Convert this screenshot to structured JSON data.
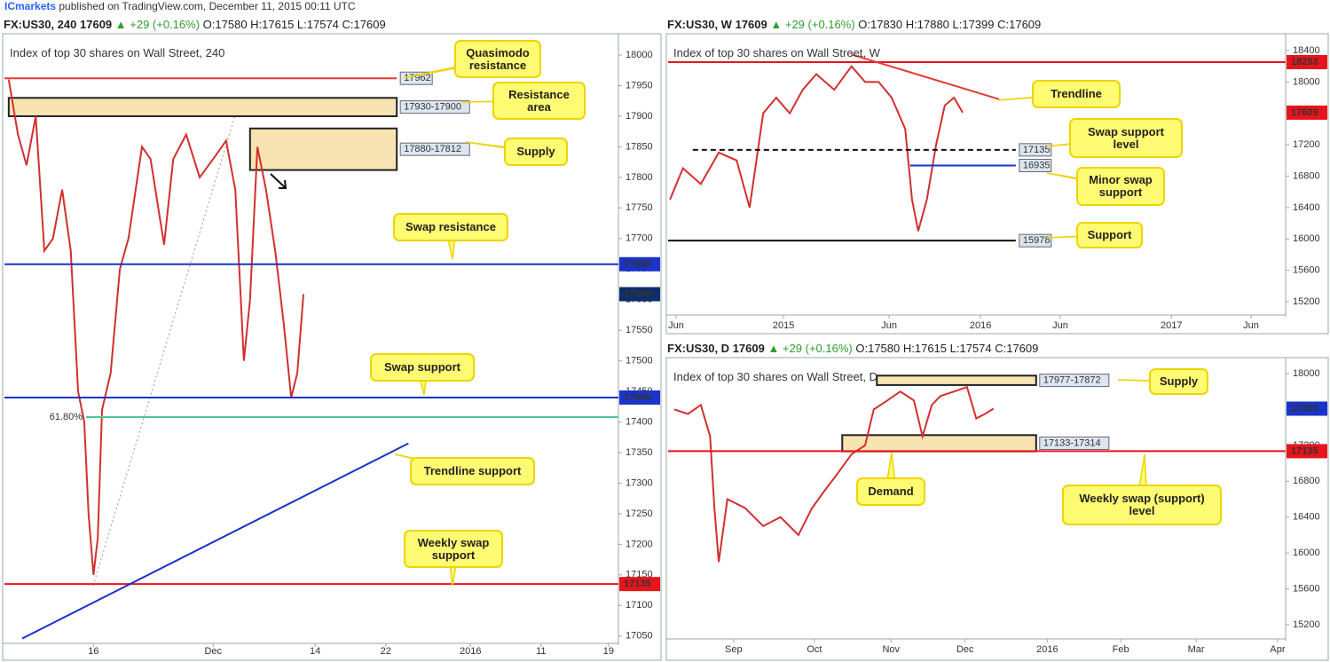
{
  "header": {
    "brand": "ICmarkets",
    "published": "published on TradingView.com, December 11, 2015 00:11 UTC"
  },
  "chart_data": [
    {
      "type": "line",
      "symbol": "FX:US30, 240",
      "last": 17609,
      "change": "▲ +29 (+0.16%)",
      "ohlc": "O:17580 H:17615 L:17574 C:17609",
      "title": "Index of top 30 shares on Wall Street, 240",
      "x": [
        0.7,
        2.2,
        3.6,
        5.1,
        6.5,
        7.9,
        9.4,
        10.8,
        12.0,
        13.0,
        13.7,
        14.5,
        15.2,
        15.9,
        17.3,
        18.8,
        20.2,
        22.4,
        23.8,
        26.0,
        27.5,
        29.6,
        31.8,
        34.0,
        36.1,
        37.6,
        39.0,
        40.0,
        41.2,
        42.6,
        44.1,
        45.5,
        46.7,
        47.7,
        48.7
      ],
      "values": [
        17960,
        17870,
        17820,
        17900,
        17680,
        17700,
        17780,
        17680,
        17450,
        17400,
        17250,
        17150,
        17210,
        17420,
        17480,
        17650,
        17700,
        17850,
        17830,
        17690,
        17830,
        17870,
        17800,
        17830,
        17860,
        17780,
        17500,
        17600,
        17850,
        17780,
        17680,
        17560,
        17440,
        17480,
        17609
      ],
      "color": "#d32f2f",
      "xlim": [
        0,
        100
      ],
      "ylim": [
        17038,
        18032
      ],
      "xticks": [
        {
          "value": 14.5,
          "label": "16"
        },
        {
          "value": 34.0,
          "label": "Dec"
        },
        {
          "value": 50.6,
          "label": "14"
        },
        {
          "value": 62.1,
          "label": "22"
        },
        {
          "value": 75.9,
          "label": "2016"
        },
        {
          "value": 87.4,
          "label": "11"
        },
        {
          "value": 98.4,
          "label": "19"
        }
      ],
      "yticks": [
        17050,
        17100,
        17150,
        17200,
        17250,
        17300,
        17350,
        17400,
        17450,
        17500,
        17550,
        17600,
        17650,
        17700,
        17750,
        17800,
        17850,
        17900,
        17950,
        18000
      ],
      "zones": [
        {
          "label": "17930-17900",
          "top": 17930,
          "bottom": 17900,
          "from": 0.7,
          "to": 63.9
        },
        {
          "label": "17880-17812",
          "top": 17880,
          "bottom": 17812,
          "from": 40.0,
          "to": 63.9
        }
      ],
      "levels": [
        {
          "value": 17962,
          "color": "#e53935",
          "from": 0,
          "to": 63.9,
          "tag": "inline"
        },
        {
          "value": 17658,
          "color": "#1a33c8",
          "tag": "axis"
        },
        {
          "value": 17440,
          "color": "#1a33c8",
          "tag": "axis"
        },
        {
          "value": 17135,
          "color": "#e8141b",
          "tag": "axis"
        },
        {
          "value": 17408,
          "color": "#4fc79a",
          "from": 13.3,
          "label": "61.80%"
        }
      ],
      "trendlines": [
        {
          "x": [
            2.9,
            65.8
          ],
          "y": [
            17046,
            17365
          ],
          "color": "#1a33c8"
        }
      ],
      "last_tag": {
        "value": 17609,
        "color": "#0f2d6b"
      },
      "callouts": [
        "Quasimodo resistance",
        "Resistance area",
        "Supply",
        "Swap resistance",
        "Swap support",
        "Trendline support",
        "Weekly swap support"
      ]
    },
    {
      "type": "line",
      "symbol": "FX:US30, W",
      "last": 17609,
      "change": "▲ +29 (+0.16%)",
      "ohlc": "O:17830 H:17880 L:17399 C:17609",
      "title": "Index of top 30 shares on Wall Street, W",
      "x": [
        0.3,
        2.4,
        5.3,
        8.2,
        11.1,
        13.2,
        15.4,
        17.5,
        19.7,
        21.8,
        24.0,
        26.9,
        29.7,
        31.9,
        34.1,
        36.2,
        38.4,
        39.5,
        40.5,
        41.9,
        43.4,
        44.8,
        46.3,
        47.7
      ],
      "values": [
        16500,
        16900,
        16700,
        17100,
        17000,
        16400,
        17600,
        17800,
        17600,
        17900,
        18100,
        17900,
        18200,
        18000,
        18000,
        17800,
        17400,
        16500,
        16100,
        16500,
        17200,
        17700,
        17800,
        17609
      ],
      "color": "#d32f2f",
      "xlim": [
        0,
        100
      ],
      "ylim": [
        15030,
        18592
      ],
      "xticks": [
        {
          "value": 1.3,
          "label": "Jun"
        },
        {
          "value": 18.7,
          "label": "2015"
        },
        {
          "value": 35.8,
          "label": "Jun"
        },
        {
          "value": 50.6,
          "label": "2016"
        },
        {
          "value": 63.5,
          "label": "Jun"
        },
        {
          "value": 81.5,
          "label": "2017"
        },
        {
          "value": 94.4,
          "label": "Jun"
        }
      ],
      "yticks": [
        15200,
        15600,
        16000,
        16400,
        16800,
        17200,
        17600,
        18000,
        18400
      ],
      "zones": [],
      "levels": [
        {
          "value": 18253,
          "color": "#e8141b",
          "tag": "axis"
        },
        {
          "value": 17135,
          "color": "#111111",
          "dash": true,
          "from": 4.0,
          "to": 56.3,
          "tag": "inline"
        },
        {
          "value": 16935,
          "color": "#1a33c8",
          "from": 39.2,
          "to": 56.3,
          "tag": "inline"
        },
        {
          "value": 15978,
          "color": "#111111",
          "from": 0,
          "to": 56.3,
          "tag": "inline"
        }
      ],
      "trendlines": [
        {
          "x": [
            29.7,
            53.6
          ],
          "y": [
            18350,
            17780
          ],
          "color": "#e53935"
        }
      ],
      "last_tag": {
        "value": 17609,
        "color": "#e8141b"
      },
      "callouts": [
        "Trendline",
        "Swap support level",
        "Minor swap support",
        "Support"
      ]
    },
    {
      "type": "line",
      "symbol": "FX:US30, D",
      "last": 17609,
      "change": "▲ +29 (+0.16%)",
      "ohlc": "O:17580 H:17615 L:17574 C:17609",
      "title": "Index of top 30 shares on Wall Street, D",
      "x": [
        1.0,
        3.2,
        5.3,
        6.8,
        7.5,
        8.2,
        9.6,
        12.5,
        15.4,
        18.2,
        21.1,
        23.3,
        25.4,
        27.6,
        29.7,
        31.9,
        33.3,
        35.5,
        37.6,
        39.8,
        41.2,
        42.7,
        44.1,
        46.3,
        48.4,
        49.9,
        51.3,
        52.7
      ],
      "values": [
        17600,
        17550,
        17650,
        17300,
        16500,
        15900,
        16600,
        16500,
        16300,
        16400,
        16200,
        16500,
        16700,
        16900,
        17100,
        17200,
        17600,
        17700,
        17800,
        17700,
        17300,
        17650,
        17750,
        17800,
        17850,
        17500,
        17550,
        17609
      ],
      "color": "#d32f2f",
      "xlim": [
        0,
        100
      ],
      "ylim": [
        15042,
        18158
      ],
      "xticks": [
        {
          "value": 10.6,
          "label": "Sep"
        },
        {
          "value": 23.7,
          "label": "Oct"
        },
        {
          "value": 36.1,
          "label": "Nov"
        },
        {
          "value": 48.1,
          "label": "Dec"
        },
        {
          "value": 61.4,
          "label": "2016"
        },
        {
          "value": 73.3,
          "label": "Feb"
        },
        {
          "value": 85.5,
          "label": "Mar"
        },
        {
          "value": 98.7,
          "label": "Apr"
        }
      ],
      "yticks": [
        15200,
        15600,
        16000,
        16400,
        16800,
        17200,
        17600,
        18000
      ],
      "zones": [
        {
          "label": "17977-17872",
          "top": 17977,
          "bottom": 17872,
          "from": 33.8,
          "to": 59.6
        },
        {
          "label": "17133-17314",
          "top": 17314,
          "bottom": 17133,
          "from": 28.2,
          "to": 59.6
        }
      ],
      "levels": [
        {
          "value": 17135,
          "color": "#e8141b",
          "tag": "axis"
        }
      ],
      "trendlines": [],
      "last_tag": {
        "value": 17609,
        "color": "#1a33c8"
      },
      "callouts": [
        "Supply",
        "Demand",
        "Weekly swap (support) level"
      ]
    }
  ]
}
